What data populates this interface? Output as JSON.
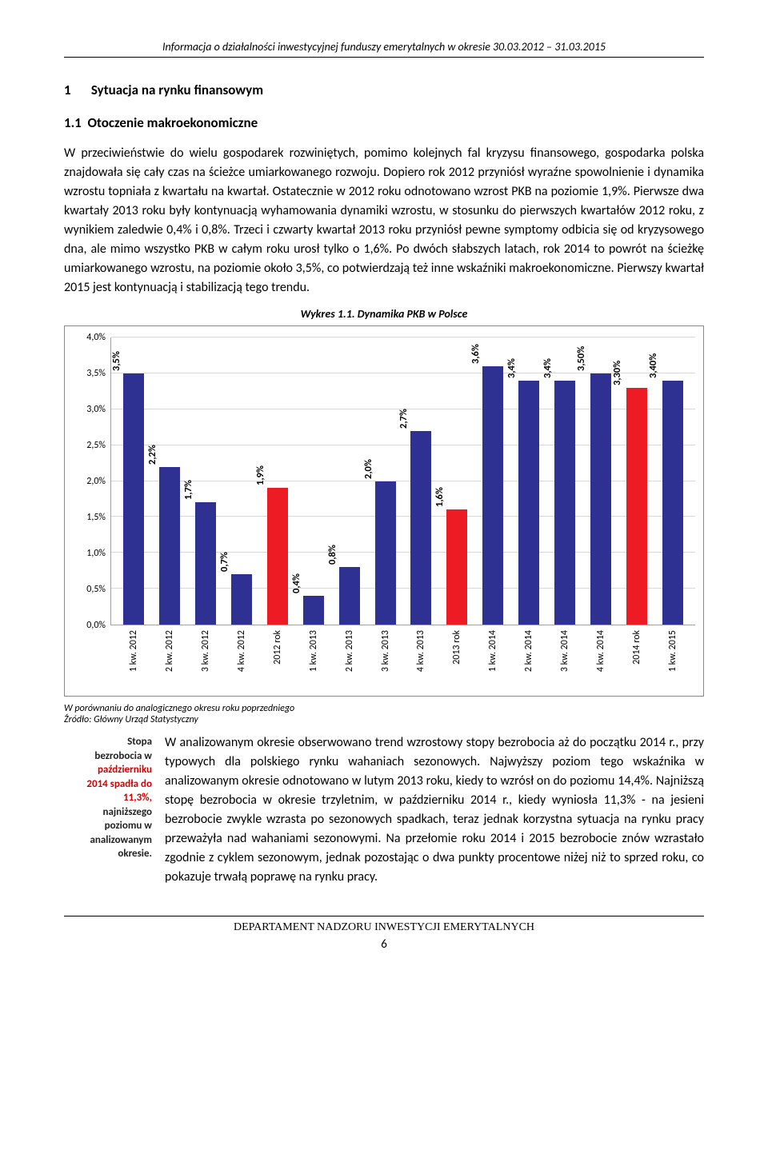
{
  "running_header": "Informacja o działalności inwestycyjnej funduszy emerytalnych w okresie 30.03.2012 – 31.03.2015",
  "section": {
    "num": "1",
    "title": "Sytuacja na rynku finansowym"
  },
  "subsection": {
    "num": "1.1",
    "title": "Otoczenie makroekonomiczne"
  },
  "paragraph1": "W przeciwieństwie do wielu gospodarek rozwiniętych, pomimo kolejnych fal kryzysu finansowego, gospodarka polska znajdowała się cały czas na ścieżce umiarkowanego rozwoju. Dopiero rok 2012 przyniósł wyraźne spowolnienie i dynamika wzrostu topniała z kwartału na kwartał. Ostatecznie w 2012 roku odnotowano wzrost PKB na poziomie 1,9%. Pierwsze dwa kwartały 2013 roku były kontynuacją wyhamowania dynamiki wzrostu, w stosunku do pierwszych kwartałów 2012 roku, z wynikiem zaledwie 0,4% i 0,8%. Trzeci i czwarty kwartał 2013 roku przyniósł pewne symptomy odbicia się od kryzysowego dna, ale mimo wszystko PKB w całym roku urosł tylko o 1,6%. Po dwóch słabszych latach, rok 2014 to powrót na ścieżkę umiarkowanego wzrostu, na poziomie około 3,5%, co potwierdzają też inne wskaźniki makroekonomiczne. Pierwszy kwartał 2015 jest kontynuacją i stabilizacją tego trendu.",
  "chart": {
    "title": "Wykres 1.1. Dynamika PKB w Polsce",
    "type": "bar",
    "y_ticks": [
      "0,0%",
      "0,5%",
      "1,0%",
      "1,5%",
      "2,0%",
      "2,5%",
      "3,0%",
      "3,5%",
      "4,0%"
    ],
    "y_max": 4.0,
    "y_tick_step": 0.5,
    "color_q": "#2e3192",
    "color_year": "#ed1c24",
    "grid_color": "#d8d8d8",
    "axis_color": "#a0a0a0",
    "series": [
      {
        "x": "1 kw. 2012",
        "v": 3.5,
        "label": "3,5%",
        "type": "q"
      },
      {
        "x": "2 kw. 2012",
        "v": 2.2,
        "label": "2,2%",
        "type": "q"
      },
      {
        "x": "3 kw. 2012",
        "v": 1.7,
        "label": "1,7%",
        "type": "q"
      },
      {
        "x": "4 kw. 2012",
        "v": 0.7,
        "label": "0,7%",
        "type": "q"
      },
      {
        "x": "2012 rok",
        "v": 1.9,
        "label": "1,9%",
        "type": "year"
      },
      {
        "x": "1 kw. 2013",
        "v": 0.4,
        "label": "0,4%",
        "type": "q"
      },
      {
        "x": "2 kw. 2013",
        "v": 0.8,
        "label": "0,8%",
        "type": "q"
      },
      {
        "x": "3 kw. 2013",
        "v": 2.0,
        "label": "2,0%",
        "type": "q"
      },
      {
        "x": "4 kw. 2013",
        "v": 2.7,
        "label": "2,7%",
        "type": "q"
      },
      {
        "x": "2013 rok",
        "v": 1.6,
        "label": "1,6%",
        "type": "year"
      },
      {
        "x": "1 kw. 2014",
        "v": 3.6,
        "label": "3,6%",
        "type": "q"
      },
      {
        "x": "2 kw. 2014",
        "v": 3.4,
        "label": "3,4%",
        "type": "q"
      },
      {
        "x": "3 kw. 2014",
        "v": 3.4,
        "label": "3,4%",
        "type": "q"
      },
      {
        "x": "4 kw. 2014",
        "v": 3.5,
        "label": "3,50%",
        "type": "q"
      },
      {
        "x": "2014 rok",
        "v": 3.3,
        "label": "3,30%",
        "type": "year"
      },
      {
        "x": "1 kw. 2015",
        "v": 3.4,
        "label": "3,40%",
        "type": "q"
      }
    ]
  },
  "source_line1": "W porównaniu do analogicznego okresu roku poprzedniego",
  "source_line2": "Źródło: Główny Urząd Statystyczny",
  "margin_note": {
    "l1": "Stopa",
    "l2": "bezrobocia w",
    "l3": "październiku",
    "l4": "2014 spadła do",
    "l5": "11,3%,",
    "l6": "najniższego",
    "l7": "poziomu w",
    "l8": "analizowanym",
    "l9": "okresie."
  },
  "paragraph2": "W analizowanym okresie obserwowano trend wzrostowy stopy bezrobocia aż do początku 2014 r., przy typowych dla polskiego rynku wahaniach sezonowych. Najwyższy poziom tego wskaźnika w analizowanym okresie odnotowano w lutym 2013 roku, kiedy to wzrósł on do poziomu 14,4%. Najniższą stopę bezrobocia w okresie trzyletnim, w październiku 2014 r., kiedy wyniosła 11,3% - na jesieni bezrobocie zwykle wzrasta po sezonowych spadkach, teraz jednak korzystna sytuacja na rynku pracy przeważyła nad wahaniami sezonowymi. Na przełomie roku 2014 i 2015 bezrobocie znów wzrastało zgodnie z cyklem sezonowym, jednak pozostając o dwa punkty procentowe niżej niż to sprzed roku, co pokazuje trwałą poprawę na rynku pracy.",
  "footer_dept": "DEPARTAMENT NADZORU INWESTYCJI EMERYTALNYCH",
  "page_num": "6"
}
